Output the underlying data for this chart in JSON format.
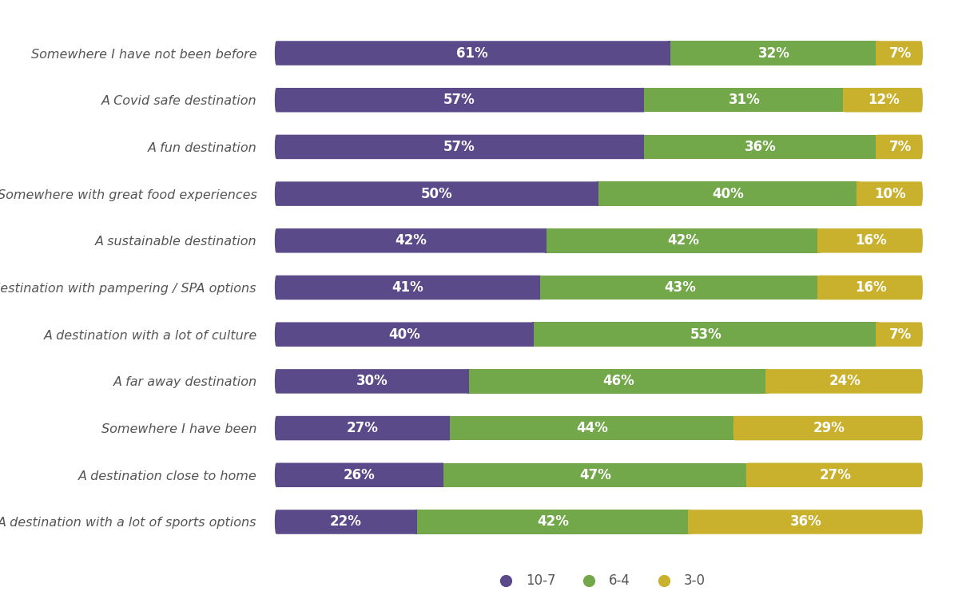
{
  "categories": [
    "Somewhere I have not been before",
    "A Covid safe destination",
    "A fun destination",
    "Somewhere with great food experiences",
    "A sustainable destination",
    "A destination with pampering / SPA options",
    "A destination with a lot of culture",
    "A far away destination",
    "Somewhere I have been",
    "A destination close to home",
    "A destination with a lot of sports options"
  ],
  "values_10_7": [
    61,
    57,
    57,
    50,
    42,
    41,
    40,
    30,
    27,
    26,
    22
  ],
  "values_6_4": [
    32,
    31,
    36,
    40,
    42,
    43,
    53,
    46,
    44,
    47,
    42
  ],
  "values_3_0": [
    7,
    12,
    7,
    10,
    16,
    16,
    7,
    24,
    29,
    27,
    36
  ],
  "color_10_7": "#5b4a8a",
  "color_6_4": "#72a84a",
  "color_3_0": "#c9b12e",
  "background_color": "#ffffff",
  "bar_height": 0.52,
  "text_color_bars": "#ffffff",
  "label_color": "#555555",
  "legend_labels": [
    "10-7",
    "6-4",
    "3-0"
  ],
  "fontsize_bar_label": 12,
  "fontsize_category": 11.5
}
